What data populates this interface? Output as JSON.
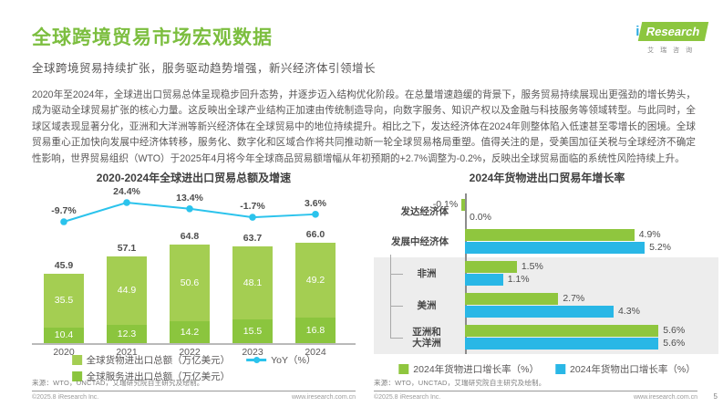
{
  "page": {
    "title": "全球跨境贸易市场宏观数据",
    "subtitle": "全球跨境贸易持续扩张，服务驱动趋势增强，新兴经济体引领增长",
    "body": "2020年至2024年，全球进出口贸易总体呈现稳步回升态势，并逐步迈入结构优化阶段。在总量增速趋缓的背景下，服务贸易持续展现出更强劲的增长势头，成为驱动全球贸易扩张的核心力量。这反映出全球产业结构正加速由传统制造导向，向数字服务、知识产权以及金融与科技服务等领域转型。与此同时，全球区域表现显著分化，亚洲和大洋洲等新兴经济体在全球贸易中的地位持续提升。相比之下，发达经济体在2024年则整体陷入低速甚至零增长的困境。全球贸易重心正加快向发展中经济体转移，服务化、数字化和区域合作将共同推动新一轮全球贸易格局重塑。值得关注的是，受美国加征关税与全球经济不确定性影响，世界贸易组织（WTO）于2025年4月将今年全球商品贸易额增幅从年初预期的+2.7%调整为-0.2%，反映出全球贸易面临的系统性风险持续上升。",
    "page_number": "5"
  },
  "logo": {
    "i": "i",
    "brand": "Research",
    "caption": "艾瑞咨询"
  },
  "colors": {
    "accent_green": "#7cbe3f",
    "bar_goods_green": "#a4ce52",
    "bar_services_green": "#8bc53e",
    "line_cyan": "#2bc3ec",
    "import_green": "#8fc63e",
    "export_blue": "#29b7e6",
    "panel_grey": "#ededed"
  },
  "footer": {
    "source": "来源：WTO，UNCTAD，艾瑞研究院自主研究及绘制。",
    "copyright": "©2025.8 iResearch Inc.",
    "site": "www.iresearch.com.cn"
  },
  "chart_data": [
    {
      "type": "bar",
      "subtype": "stacked-bar-with-line",
      "title": "2020-2024年全球进出口贸易总额及增速",
      "categories": [
        "2020",
        "2021",
        "2022",
        "2023",
        "2024"
      ],
      "series": [
        {
          "name": "全球货物进出口总额（万亿美元）",
          "values": [
            35.5,
            44.9,
            50.6,
            48.1,
            49.2
          ],
          "color": "#a4ce52"
        },
        {
          "name": "全球服务进出口总额（万亿美元）",
          "values": [
            10.4,
            12.3,
            14.2,
            15.5,
            16.8
          ],
          "color": "#8bc53e"
        }
      ],
      "totals": [
        45.9,
        57.1,
        64.8,
        63.7,
        66.0
      ],
      "line": {
        "name": "YoY（%）",
        "values": [
          -9.7,
          24.4,
          13.4,
          -1.7,
          3.6
        ],
        "color": "#2bc3ec"
      },
      "ylabel": "万亿美元",
      "legend_position": "bottom",
      "grid": false
    },
    {
      "type": "bar",
      "subtype": "horizontal-grouped",
      "title": "2024年货物进出口贸易年增长率",
      "categories": [
        "发达经济体",
        "发展中经济体",
        "非洲",
        "美洲",
        "亚洲和\n大洋洲"
      ],
      "subgroup_of_developing": [
        "非洲",
        "美洲",
        "亚洲和大洋洲"
      ],
      "series": [
        {
          "name": "2024年货物进口增长率（%）",
          "values": [
            -0.1,
            4.9,
            1.5,
            2.7,
            5.6
          ],
          "color": "#8fc63e"
        },
        {
          "name": "2024年货物出口增长率（%）",
          "values": [
            0.0,
            5.2,
            1.1,
            4.3,
            5.6
          ],
          "color": "#29b7e6"
        }
      ],
      "xlabel": "%",
      "legend_position": "bottom",
      "grid": false
    }
  ]
}
